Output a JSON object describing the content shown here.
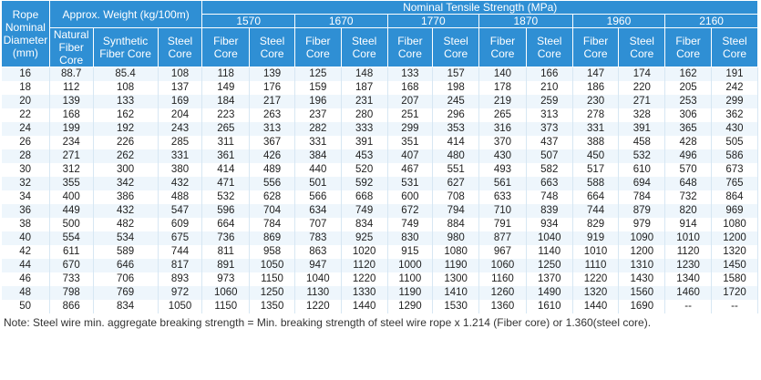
{
  "header": {
    "rope_diameter": "Rope Nominal Diameter (mm)",
    "approx_weight": "Approx. Weight (kg/100m)",
    "tensile_strength": "Nominal Tensile Strength  (MPa)",
    "weight_cols": [
      "Natural Fiber Core",
      "Synthetic Fiber Core",
      "Steel Core"
    ],
    "grades": [
      "1570",
      "1670",
      "1770",
      "1870",
      "1960",
      "2160"
    ],
    "core_labels": [
      "Fiber Core",
      "Steel Core"
    ]
  },
  "rows": [
    [
      "16",
      "88.7",
      "85.4",
      "108",
      "118",
      "139",
      "125",
      "148",
      "133",
      "157",
      "140",
      "166",
      "147",
      "174",
      "162",
      "191"
    ],
    [
      "18",
      "112",
      "108",
      "137",
      "149",
      "176",
      "159",
      "187",
      "168",
      "198",
      "178",
      "210",
      "186",
      "220",
      "205",
      "242"
    ],
    [
      "20",
      "139",
      "133",
      "169",
      "184",
      "217",
      "196",
      "231",
      "207",
      "245",
      "219",
      "259",
      "230",
      "271",
      "253",
      "299"
    ],
    [
      "22",
      "168",
      "162",
      "204",
      "223",
      "263",
      "237",
      "280",
      "251",
      "296",
      "265",
      "313",
      "278",
      "328",
      "306",
      "362"
    ],
    [
      "24",
      "199",
      "192",
      "243",
      "265",
      "313",
      "282",
      "333",
      "299",
      "353",
      "316",
      "373",
      "331",
      "391",
      "365",
      "430"
    ],
    [
      "26",
      "234",
      "226",
      "285",
      "311",
      "367",
      "331",
      "391",
      "351",
      "414",
      "370",
      "437",
      "388",
      "458",
      "428",
      "505"
    ],
    [
      "28",
      "271",
      "262",
      "331",
      "361",
      "426",
      "384",
      "453",
      "407",
      "480",
      "430",
      "507",
      "450",
      "532",
      "496",
      "586"
    ],
    [
      "30",
      "312",
      "300",
      "380",
      "414",
      "489",
      "440",
      "520",
      "467",
      "551",
      "493",
      "582",
      "517",
      "610",
      "570",
      "673"
    ],
    [
      "32",
      "355",
      "342",
      "432",
      "471",
      "556",
      "501",
      "592",
      "531",
      "627",
      "561",
      "663",
      "588",
      "694",
      "648",
      "765"
    ],
    [
      "34",
      "400",
      "386",
      "488",
      "532",
      "628",
      "566",
      "668",
      "600",
      "708",
      "633",
      "748",
      "664",
      "784",
      "732",
      "864"
    ],
    [
      "36",
      "449",
      "432",
      "547",
      "596",
      "704",
      "634",
      "749",
      "672",
      "794",
      "710",
      "839",
      "744",
      "879",
      "820",
      "969"
    ],
    [
      "38",
      "500",
      "482",
      "609",
      "664",
      "784",
      "707",
      "834",
      "749",
      "884",
      "791",
      "934",
      "829",
      "979",
      "914",
      "1080"
    ],
    [
      "40",
      "554",
      "534",
      "675",
      "736",
      "869",
      "783",
      "925",
      "830",
      "980",
      "877",
      "1040",
      "919",
      "1090",
      "1010",
      "1200"
    ],
    [
      "42",
      "611",
      "589",
      "744",
      "811",
      "958",
      "863",
      "1020",
      "915",
      "1080",
      "967",
      "1140",
      "1010",
      "1200",
      "1120",
      "1320"
    ],
    [
      "44",
      "670",
      "646",
      "817",
      "891",
      "1050",
      "947",
      "1120",
      "1000",
      "1190",
      "1060",
      "1250",
      "1110",
      "1310",
      "1230",
      "1450"
    ],
    [
      "46",
      "733",
      "706",
      "893",
      "973",
      "1150",
      "1040",
      "1220",
      "1100",
      "1300",
      "1160",
      "1370",
      "1220",
      "1430",
      "1340",
      "1580"
    ],
    [
      "48",
      "798",
      "769",
      "972",
      "1060",
      "1250",
      "1130",
      "1330",
      "1190",
      "1410",
      "1260",
      "1490",
      "1320",
      "1560",
      "1460",
      "1720"
    ],
    [
      "50",
      "866",
      "834",
      "1050",
      "1150",
      "1350",
      "1220",
      "1440",
      "1290",
      "1530",
      "1360",
      "1610",
      "1440",
      "1690",
      "--",
      "--"
    ]
  ],
  "note": "Note: Steel wire min. aggregate breaking strength = Min. breaking strength of steel wire rope x 1.214 (Fiber core) or 1.360(steel core)."
}
